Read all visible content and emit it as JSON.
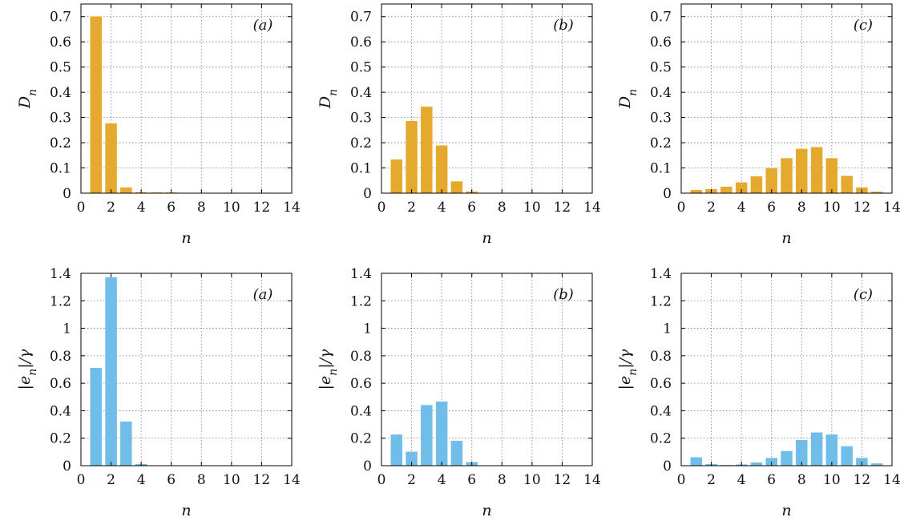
{
  "colors": {
    "top_bars": "#E5A92E",
    "bottom_bars": "#6FBDE8"
  },
  "chart_data": [
    {
      "type": "bar",
      "panel": "(a)",
      "row": "top",
      "ylabel": "D_n",
      "xlabel": "n",
      "xlim": [
        0,
        14
      ],
      "ylim": [
        0,
        0.75
      ],
      "xticks": [
        0,
        2,
        4,
        6,
        8,
        10,
        12,
        14
      ],
      "yticks": [
        0,
        0.1,
        0.2,
        0.3,
        0.4,
        0.5,
        0.6,
        0.7
      ],
      "grid": true,
      "x": [
        1,
        2,
        3,
        4,
        5,
        6
      ],
      "values": [
        0.7,
        0.276,
        0.022,
        0.003,
        0.001,
        0.0005
      ]
    },
    {
      "type": "bar",
      "panel": "(b)",
      "row": "top",
      "ylabel": "D_n",
      "xlabel": "n",
      "xlim": [
        0,
        14
      ],
      "ylim": [
        0,
        0.75
      ],
      "xticks": [
        0,
        2,
        4,
        6,
        8,
        10,
        12,
        14
      ],
      "yticks": [
        0,
        0.1,
        0.2,
        0.3,
        0.4,
        0.5,
        0.6,
        0.7
      ],
      "grid": true,
      "x": [
        1,
        2,
        3,
        4,
        5,
        6
      ],
      "values": [
        0.133,
        0.285,
        0.342,
        0.188,
        0.046,
        0.006
      ]
    },
    {
      "type": "bar",
      "panel": "(c)",
      "row": "top",
      "ylabel": "D_n",
      "xlabel": "n",
      "xlim": [
        0,
        14
      ],
      "ylim": [
        0,
        0.75
      ],
      "xticks": [
        0,
        2,
        4,
        6,
        8,
        10,
        12,
        14
      ],
      "yticks": [
        0,
        0.1,
        0.2,
        0.3,
        0.4,
        0.5,
        0.6,
        0.7
      ],
      "grid": true,
      "x": [
        1,
        2,
        3,
        4,
        5,
        6,
        7,
        8,
        9,
        10,
        11,
        12,
        13
      ],
      "values": [
        0.012,
        0.015,
        0.025,
        0.042,
        0.066,
        0.098,
        0.138,
        0.175,
        0.182,
        0.138,
        0.068,
        0.022,
        0.005
      ]
    },
    {
      "type": "bar",
      "panel": "(a)",
      "row": "bottom",
      "ylabel": "|e_n|/γ",
      "xlabel": "n",
      "xlim": [
        0,
        14
      ],
      "ylim": [
        0,
        1.4
      ],
      "xticks": [
        0,
        2,
        4,
        6,
        8,
        10,
        12,
        14
      ],
      "yticks": [
        0,
        0.2,
        0.4,
        0.6,
        0.8,
        1,
        1.2,
        1.4
      ],
      "grid": true,
      "x": [
        1,
        2,
        3,
        4
      ],
      "values": [
        0.71,
        1.37,
        0.32,
        0.01
      ]
    },
    {
      "type": "bar",
      "panel": "(b)",
      "row": "bottom",
      "ylabel": "|e_n|/γ",
      "xlabel": "n",
      "xlim": [
        0,
        14
      ],
      "ylim": [
        0,
        1.4
      ],
      "xticks": [
        0,
        2,
        4,
        6,
        8,
        10,
        12,
        14
      ],
      "yticks": [
        0,
        0.2,
        0.4,
        0.6,
        0.8,
        1,
        1.2,
        1.4
      ],
      "grid": true,
      "x": [
        1,
        2,
        3,
        4,
        5,
        6
      ],
      "values": [
        0.225,
        0.1,
        0.44,
        0.465,
        0.18,
        0.025
      ]
    },
    {
      "type": "bar",
      "panel": "(c)",
      "row": "bottom",
      "ylabel": "|e_n|/γ",
      "xlabel": "n",
      "xlim": [
        0,
        14
      ],
      "ylim": [
        0,
        1.4
      ],
      "xticks": [
        0,
        2,
        4,
        6,
        8,
        10,
        12,
        14
      ],
      "yticks": [
        0,
        0.2,
        0.4,
        0.6,
        0.8,
        1,
        1.2,
        1.4
      ],
      "grid": true,
      "x": [
        1,
        2,
        3,
        4,
        5,
        6,
        7,
        8,
        9,
        10,
        11,
        12,
        13
      ],
      "values": [
        0.06,
        0.01,
        0.002,
        0.008,
        0.022,
        0.055,
        0.105,
        0.185,
        0.24,
        0.225,
        0.14,
        0.055,
        0.015
      ]
    }
  ]
}
